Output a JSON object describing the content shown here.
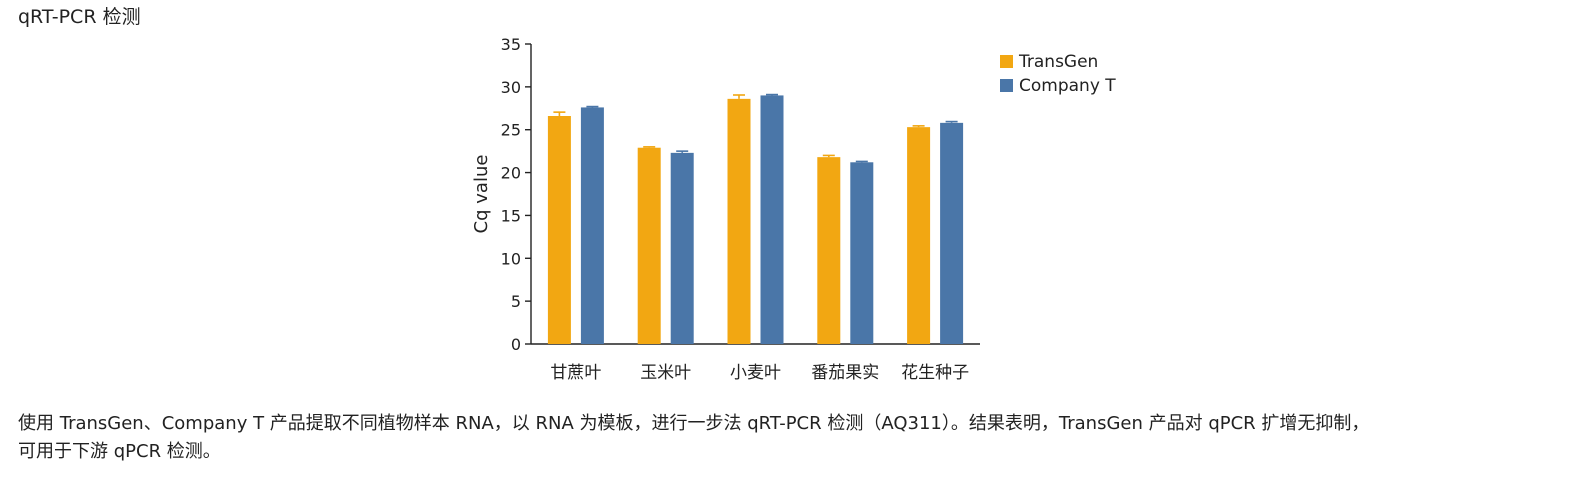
{
  "section_title": "qRT-PCR 检测",
  "caption": {
    "line1": "使用 TransGen、Company T 产品提取不同植物样本 RNA，以 RNA 为模板，进行一步法 qRT-PCR 检测（AQ311）。结果表明，TransGen 产品对 qPCR 扩增无抑制，",
    "line2": "可用于下游 qPCR 检测。"
  },
  "chart_data": {
    "type": "bar",
    "title": "",
    "xlabel": "",
    "ylabel": "Cq value",
    "ylim": [
      0,
      35
    ],
    "yticks": [
      0,
      5,
      10,
      15,
      20,
      25,
      30,
      35
    ],
    "grid": false,
    "legend_position": "top-right",
    "categories": [
      "甘蔗叶",
      "玉米叶",
      "小麦叶",
      "番茄果实",
      "花生种子"
    ],
    "series": [
      {
        "name": "TransGen",
        "color": "#F2A712",
        "values": [
          26.6,
          22.9,
          28.6,
          21.8,
          25.3
        ],
        "errors": [
          0.45,
          0.1,
          0.45,
          0.2,
          0.15
        ]
      },
      {
        "name": "Company T",
        "color": "#4A76A8",
        "values": [
          27.6,
          22.3,
          29.0,
          21.2,
          25.8
        ],
        "errors": [
          0.1,
          0.2,
          0.1,
          0.1,
          0.15
        ]
      }
    ]
  }
}
